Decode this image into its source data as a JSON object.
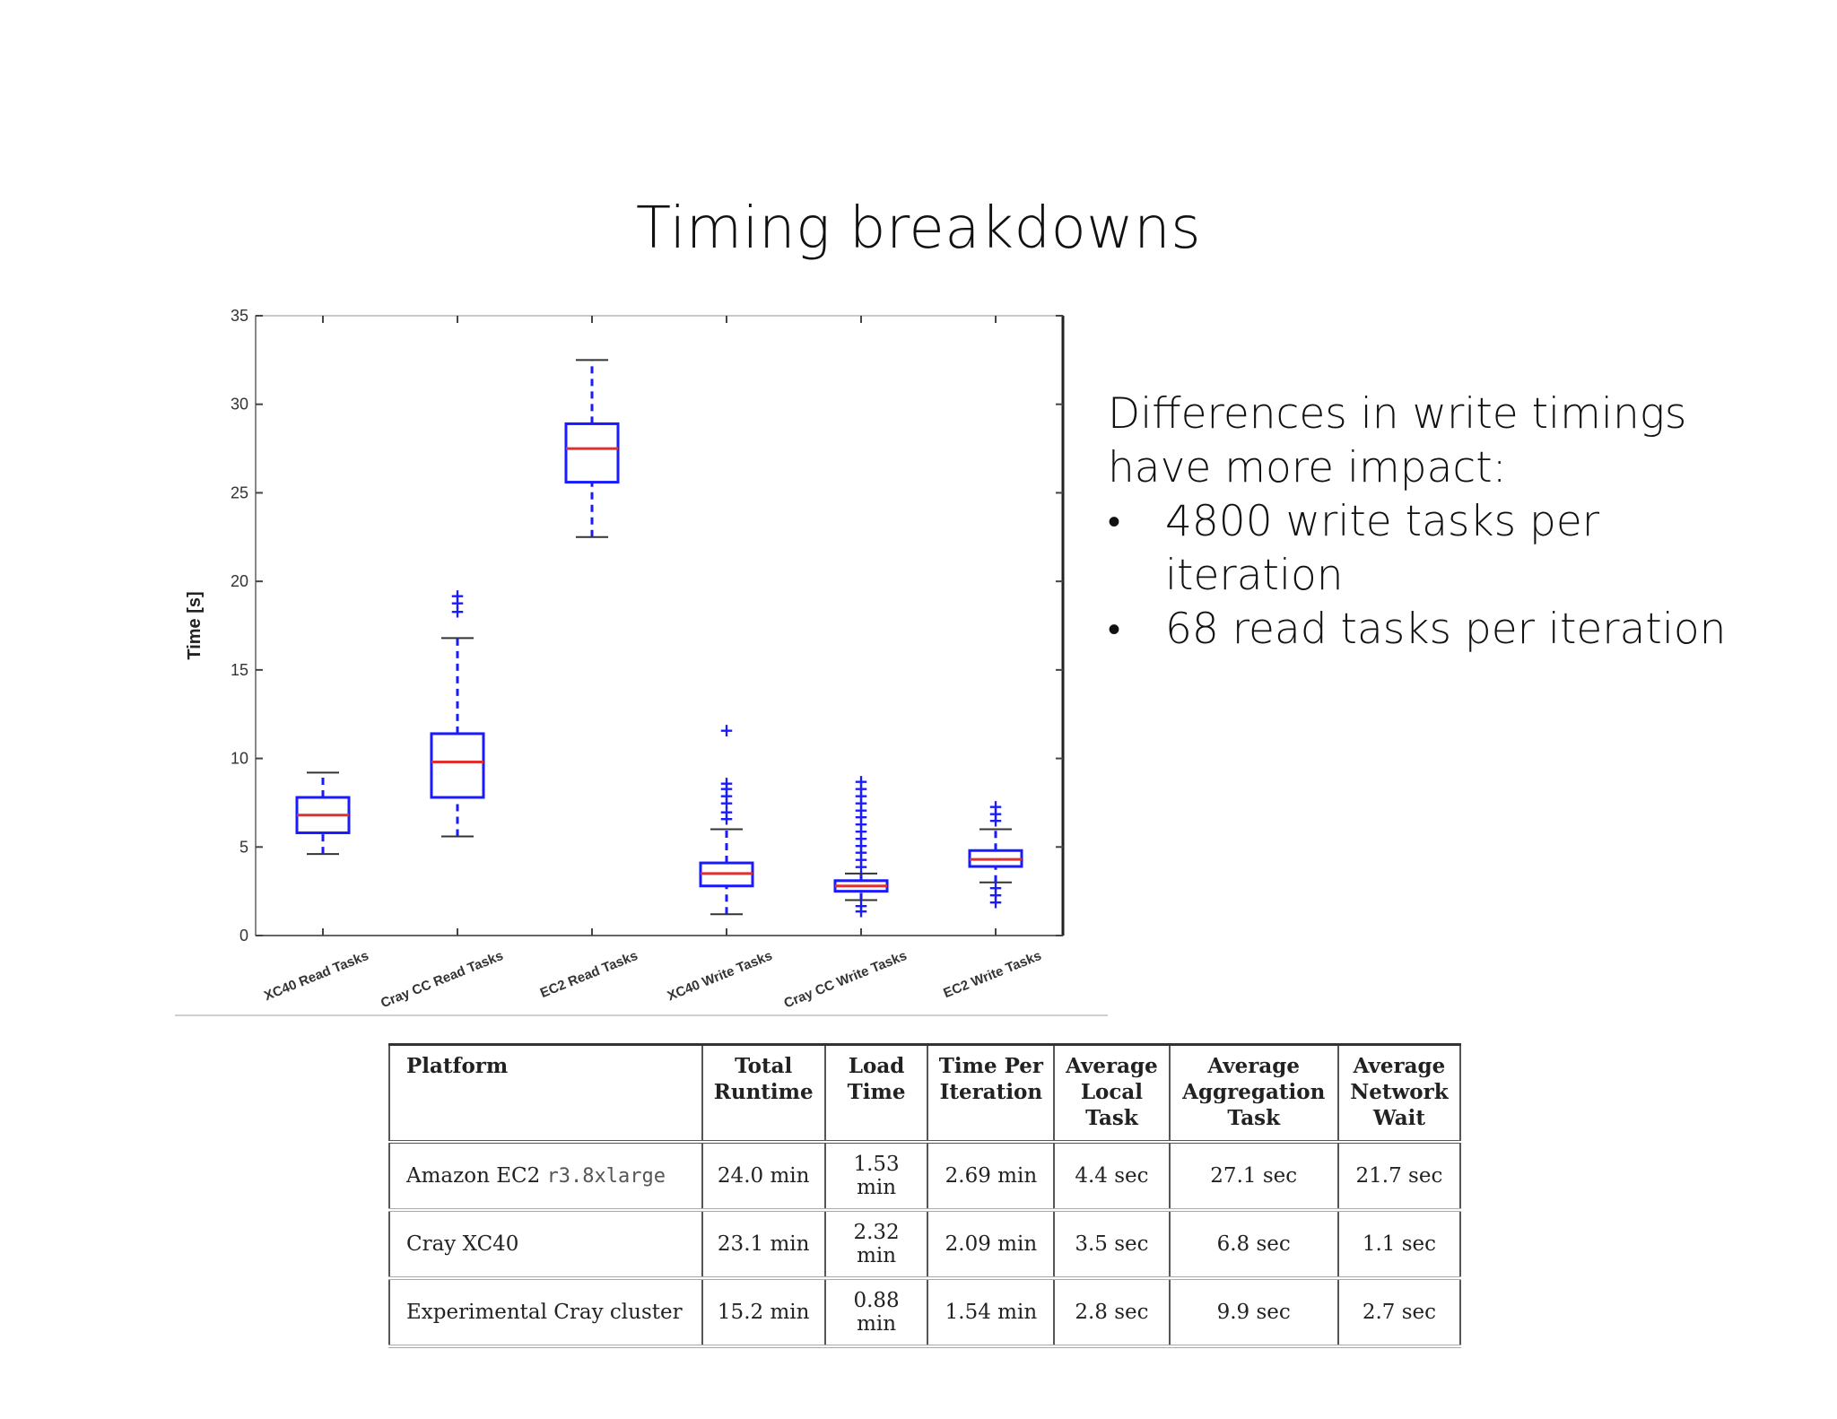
{
  "slide": {
    "title": "Timing breakdowns"
  },
  "text_panel": {
    "intro": "Differences in write timings have more impact:",
    "bullets": [
      "4800 write tasks per iteration",
      "68 read tasks per iteration"
    ]
  },
  "chart_data": {
    "type": "box",
    "ylabel": "Time [s]",
    "xlabel": "",
    "ylim": [
      0,
      35
    ],
    "yticks": [
      "0",
      "5",
      "10",
      "15",
      "20",
      "25",
      "30",
      "35"
    ],
    "median_color": "#e03030",
    "box_color": "#1a1aff",
    "series": [
      {
        "category": "XC40 Read Tasks",
        "whisker_low": 4.6,
        "q1": 5.8,
        "median": 6.8,
        "q3": 7.8,
        "whisker_high": 9.2,
        "outliers": []
      },
      {
        "category": "Cray CC Read Tasks",
        "whisker_low": 5.6,
        "q1": 7.8,
        "median": 9.8,
        "q3": 11.4,
        "whisker_high": 16.8,
        "outliers": [
          18.3,
          18.8,
          19.2
        ]
      },
      {
        "category": "EC2 Read Tasks",
        "whisker_low": 22.5,
        "q1": 25.6,
        "median": 27.5,
        "q3": 28.9,
        "whisker_high": 32.5,
        "outliers": []
      },
      {
        "category": "XC40 Write Tasks",
        "whisker_low": 1.2,
        "q1": 2.8,
        "median": 3.5,
        "q3": 4.1,
        "whisker_high": 6.0,
        "outliers": [
          6.6,
          7.0,
          7.5,
          7.9,
          8.3,
          8.6,
          11.6
        ]
      },
      {
        "category": "Cray CC Write Tasks",
        "whisker_low": 2.0,
        "q1": 2.5,
        "median": 2.8,
        "q3": 3.1,
        "whisker_high": 3.5,
        "outliers": [
          1.4,
          1.7,
          3.9,
          4.3,
          4.7,
          5.1,
          5.5,
          5.9,
          6.3,
          6.7,
          7.1,
          7.5,
          7.9,
          8.3,
          8.7
        ]
      },
      {
        "category": "EC2 Write Tasks",
        "whisker_low": 3.0,
        "q1": 3.9,
        "median": 4.3,
        "q3": 4.8,
        "whisker_high": 6.0,
        "outliers": [
          1.9,
          2.3,
          2.7,
          6.5,
          6.9,
          7.3
        ]
      }
    ]
  },
  "table": {
    "headers": [
      "Platform",
      "Total Runtime",
      "Load Time",
      "Time Per Iteration",
      "Average Local Task",
      "Average Aggregation Task",
      "Average Network Wait"
    ],
    "rows": [
      {
        "platform": "Amazon EC2",
        "platform_code": "r3.8xlarge",
        "values": [
          "24.0 min",
          "1.53 min",
          "2.69 min",
          "4.4 sec",
          "27.1 sec",
          "21.7 sec"
        ]
      },
      {
        "platform": "Cray XC40",
        "platform_code": "",
        "values": [
          "23.1 min",
          "2.32 min",
          "2.09 min",
          "3.5 sec",
          "6.8 sec",
          "1.1 sec"
        ]
      },
      {
        "platform": "Experimental Cray cluster",
        "platform_code": "",
        "values": [
          "15.2 min",
          "0.88 min",
          "1.54 min",
          "2.8 sec",
          "9.9 sec",
          "2.7 sec"
        ]
      }
    ]
  }
}
